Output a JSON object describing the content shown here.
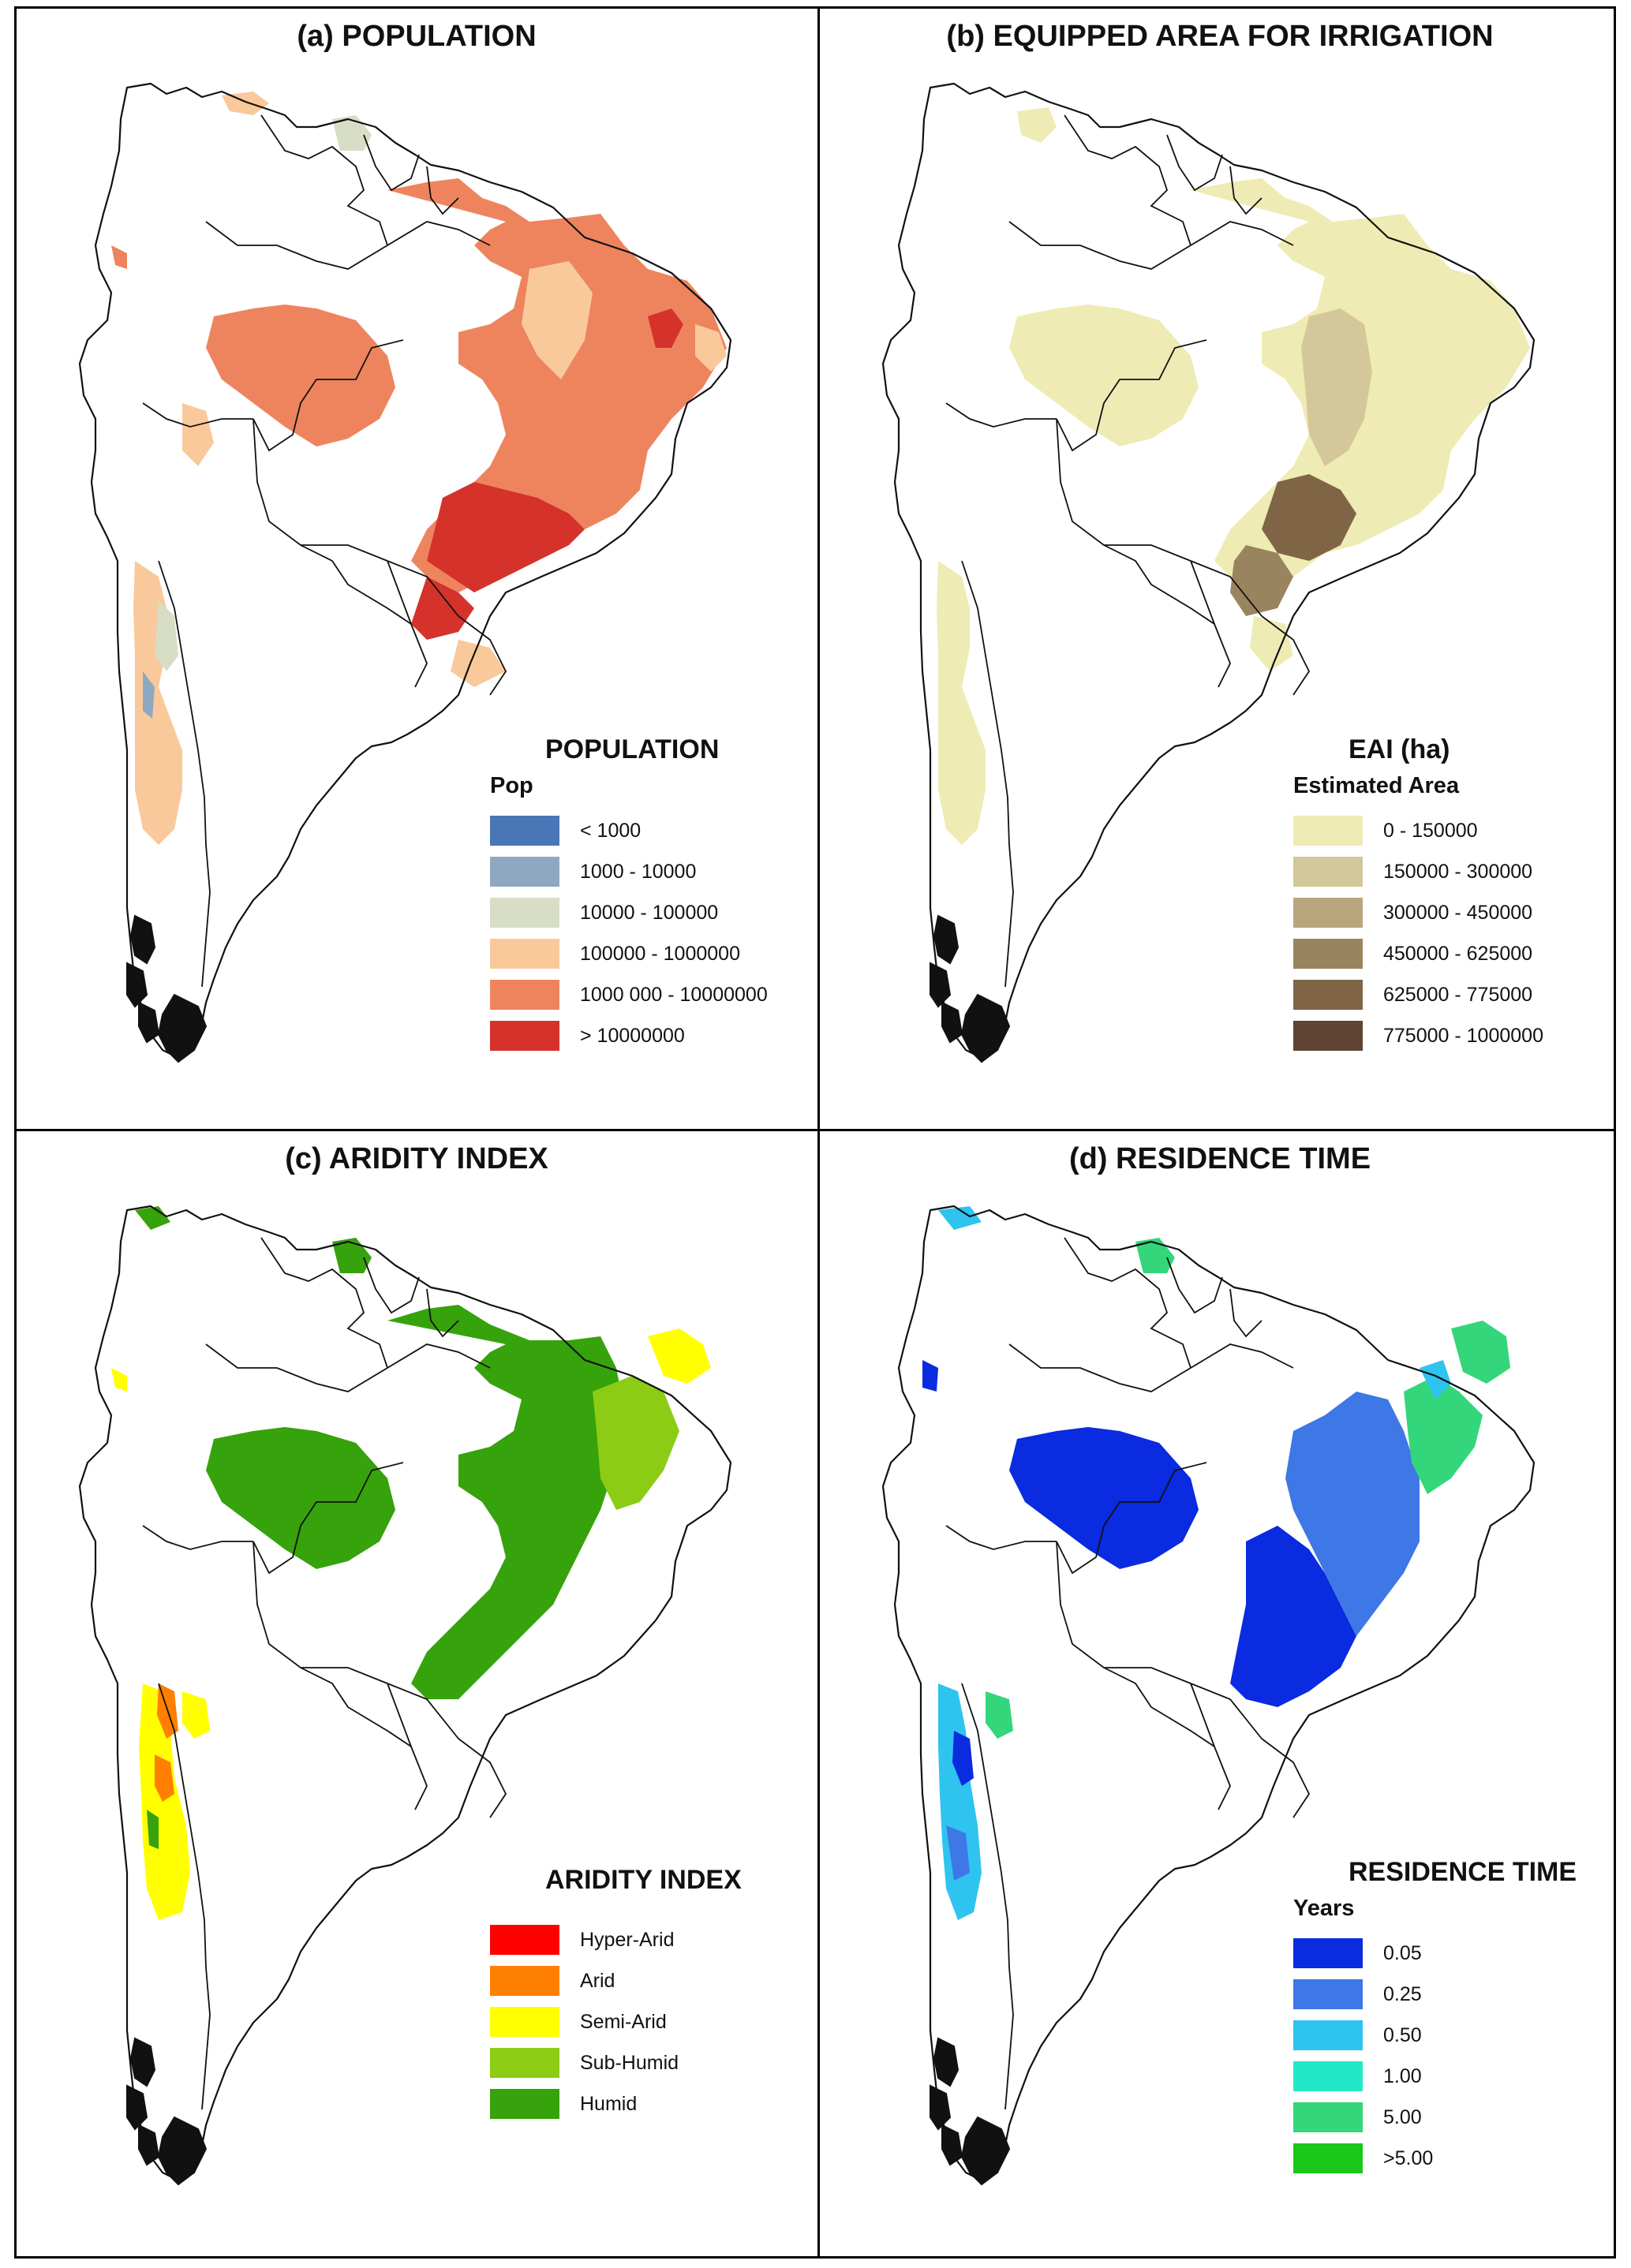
{
  "land_color": "#ffffff",
  "outline_color": "#111111",
  "panels": {
    "a": {
      "title": "(a) POPULATION",
      "legend_title": "POPULATION",
      "legend_subtitle": "Pop",
      "legend": [
        {
          "label": "< 1000",
          "color": "#4a76b8"
        },
        {
          "label": "1000 - 10000",
          "color": "#8fa8c2"
        },
        {
          "label": "10000 - 100000",
          "color": "#d8ddc6"
        },
        {
          "label": "100000 - 1000000",
          "color": "#f9c99c"
        },
        {
          "label": "1000 000 - 10000000",
          "color": "#ee845e"
        },
        {
          "label": "> 10000000",
          "color": "#d5322c"
        }
      ]
    },
    "b": {
      "title": "(b) EQUIPPED AREA FOR IRRIGATION",
      "legend_title": "EAI (ha)",
      "legend_subtitle": "Estimated Area",
      "legend": [
        {
          "label": "0 - 150000",
          "color": "#efebb4"
        },
        {
          "label": "150000 - 300000",
          "color": "#d4c89a"
        },
        {
          "label": "300000 - 450000",
          "color": "#b9a57c"
        },
        {
          "label": "450000 - 625000",
          "color": "#9a845f"
        },
        {
          "label": "625000 - 775000",
          "color": "#7f6446"
        },
        {
          "label": "775000 - 1000000",
          "color": "#5f4333"
        }
      ]
    },
    "c": {
      "title": "(c) ARIDITY INDEX",
      "legend_title": "ARIDITY INDEX",
      "legend_subtitle": "",
      "legend": [
        {
          "label": "Hyper-Arid",
          "color": "#ff0000"
        },
        {
          "label": "Arid",
          "color": "#ff7f00"
        },
        {
          "label": "Semi-Arid",
          "color": "#ffff00"
        },
        {
          "label": "Sub-Humid",
          "color": "#8ccc14"
        },
        {
          "label": "Humid",
          "color": "#36a20c"
        }
      ]
    },
    "d": {
      "title": "(d) RESIDENCE TIME",
      "legend_title": "RESIDENCE TIME",
      "legend_subtitle": "Years",
      "legend": [
        {
          "label": "0.05",
          "color": "#0a2be0"
        },
        {
          "label": "0.25",
          "color": "#3e78e6"
        },
        {
          "label": "0.50",
          "color": "#2ec4ef"
        },
        {
          "label": "1.00",
          "color": "#22e8c8"
        },
        {
          "label": "5.00",
          "color": "#33d67a"
        },
        {
          "label": ">5.00",
          "color": "#1ac81a"
        }
      ]
    }
  }
}
